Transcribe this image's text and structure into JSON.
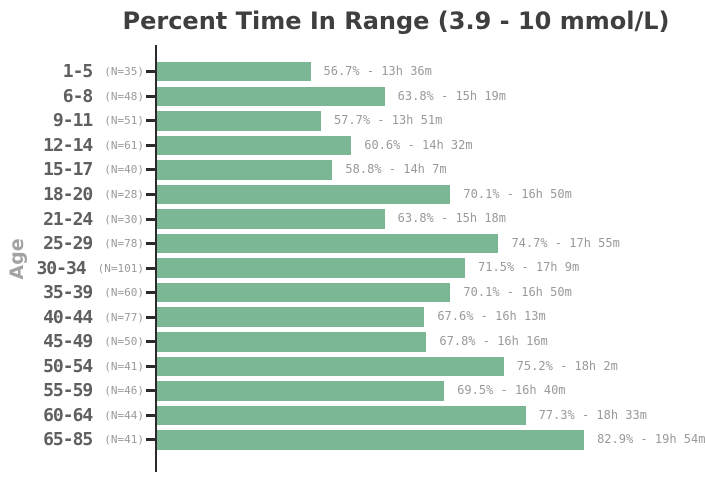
{
  "title": "Percent Time In Range (3.9 - 10 mmol/L)",
  "ylabel": "Age",
  "colors": {
    "bar": "#7bb795",
    "title_text": "#3f3f3f",
    "age_label": "#5f5f5f",
    "n_label": "#9a9a9a",
    "value_label": "#9a9a9a",
    "axis": "#2b2b2b",
    "y_axis_title": "#a2a2a2",
    "background": "#ffffff"
  },
  "chart_data": {
    "type": "bar",
    "orientation": "horizontal",
    "title": "Percent Time In Range (3.9 - 10 mmol/L)",
    "xlabel": "",
    "ylabel": "Age",
    "xlim": [
      42,
      94
    ],
    "x_unit": "percent of 24h",
    "grid": false,
    "legend": false,
    "bar_color": "#7bb795",
    "categories": [
      "1-5",
      "6-8",
      "9-11",
      "12-14",
      "15-17",
      "18-20",
      "21-24",
      "25-29",
      "30-34",
      "35-39",
      "40-44",
      "45-49",
      "50-54",
      "55-59",
      "60-64",
      "65-85"
    ],
    "rows": [
      {
        "age": "1-5",
        "n": 35,
        "n_label": "(N=35)",
        "percent": 56.7,
        "time": "13h 36m",
        "label": "56.7% - 13h 36m"
      },
      {
        "age": "6-8",
        "n": 48,
        "n_label": "(N=48)",
        "percent": 63.8,
        "time": "15h 19m",
        "label": "63.8% - 15h 19m"
      },
      {
        "age": "9-11",
        "n": 51,
        "n_label": "(N=51)",
        "percent": 57.7,
        "time": "13h 51m",
        "label": "57.7% - 13h 51m"
      },
      {
        "age": "12-14",
        "n": 61,
        "n_label": "(N=61)",
        "percent": 60.6,
        "time": "14h 32m",
        "label": "60.6% - 14h 32m"
      },
      {
        "age": "15-17",
        "n": 40,
        "n_label": "(N=40)",
        "percent": 58.8,
        "time": "14h 7m",
        "label": "58.8% - 14h 7m"
      },
      {
        "age": "18-20",
        "n": 28,
        "n_label": "(N=28)",
        "percent": 70.1,
        "time": "16h 50m",
        "label": "70.1% - 16h 50m"
      },
      {
        "age": "21-24",
        "n": 30,
        "n_label": "(N=30)",
        "percent": 63.8,
        "time": "15h 18m",
        "label": "63.8% - 15h 18m"
      },
      {
        "age": "25-29",
        "n": 78,
        "n_label": "(N=78)",
        "percent": 74.7,
        "time": "17h 55m",
        "label": "74.7% - 17h 55m"
      },
      {
        "age": "30-34",
        "n": 101,
        "n_label": "(N=101)",
        "percent": 71.5,
        "time": "17h 9m",
        "label": "71.5% - 17h 9m"
      },
      {
        "age": "35-39",
        "n": 60,
        "n_label": "(N=60)",
        "percent": 70.1,
        "time": "16h 50m",
        "label": "70.1% - 16h 50m"
      },
      {
        "age": "40-44",
        "n": 77,
        "n_label": "(N=77)",
        "percent": 67.6,
        "time": "16h 13m",
        "label": "67.6% - 16h 13m"
      },
      {
        "age": "45-49",
        "n": 50,
        "n_label": "(N=50)",
        "percent": 67.8,
        "time": "16h 16m",
        "label": "67.8% - 16h 16m"
      },
      {
        "age": "50-54",
        "n": 41,
        "n_label": "(N=41)",
        "percent": 75.2,
        "time": "18h 2m",
        "label": "75.2% - 18h 2m"
      },
      {
        "age": "55-59",
        "n": 46,
        "n_label": "(N=46)",
        "percent": 69.5,
        "time": "16h 40m",
        "label": "69.5% - 16h 40m"
      },
      {
        "age": "60-64",
        "n": 44,
        "n_label": "(N=44)",
        "percent": 77.3,
        "time": "18h 33m",
        "label": "77.3% - 18h 33m"
      },
      {
        "age": "65-85",
        "n": 41,
        "n_label": "(N=41)",
        "percent": 82.9,
        "time": "19h 54m",
        "label": "82.9% - 19h 54m"
      }
    ]
  }
}
